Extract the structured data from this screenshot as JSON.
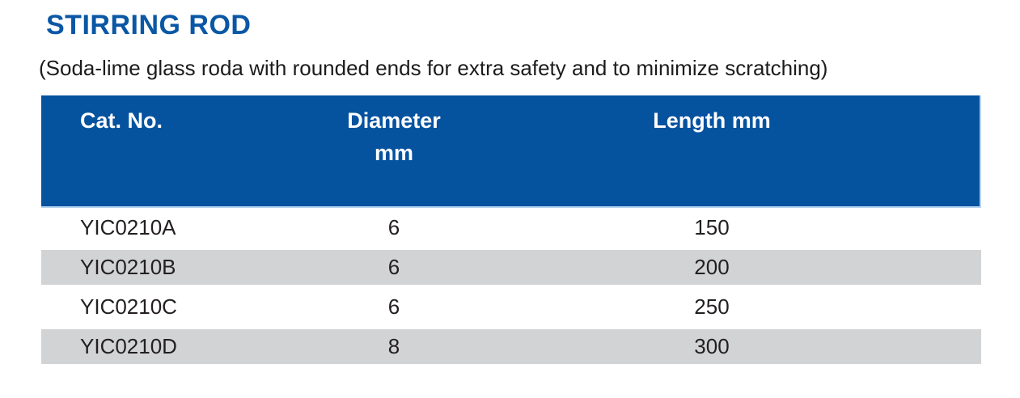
{
  "page": {
    "title": "STIRRING ROD",
    "subtitle": "(Soda-lime glass roda with rounded ends for extra safety and to minimize scratching)"
  },
  "table": {
    "columns": [
      {
        "label": "Cat. No."
      },
      {
        "label": "Diameter",
        "sublabel": "mm"
      },
      {
        "label": "Length mm"
      }
    ],
    "rows": [
      {
        "cat_no": "YIC0210A",
        "diameter_mm": "6",
        "length_mm": "150"
      },
      {
        "cat_no": "YIC0210B",
        "diameter_mm": "6",
        "length_mm": "200"
      },
      {
        "cat_no": "YIC0210C",
        "diameter_mm": "6",
        "length_mm": "250"
      },
      {
        "cat_no": "YIC0210D",
        "diameter_mm": "8",
        "length_mm": "300"
      }
    ]
  },
  "colors": {
    "title_text": "#0a57a5",
    "header_bg": "#05529f",
    "header_border": "#b5d2ee",
    "header_text": "#ffffff",
    "row_alt_bg": "#d1d3d4",
    "body_text": "#231f20"
  }
}
